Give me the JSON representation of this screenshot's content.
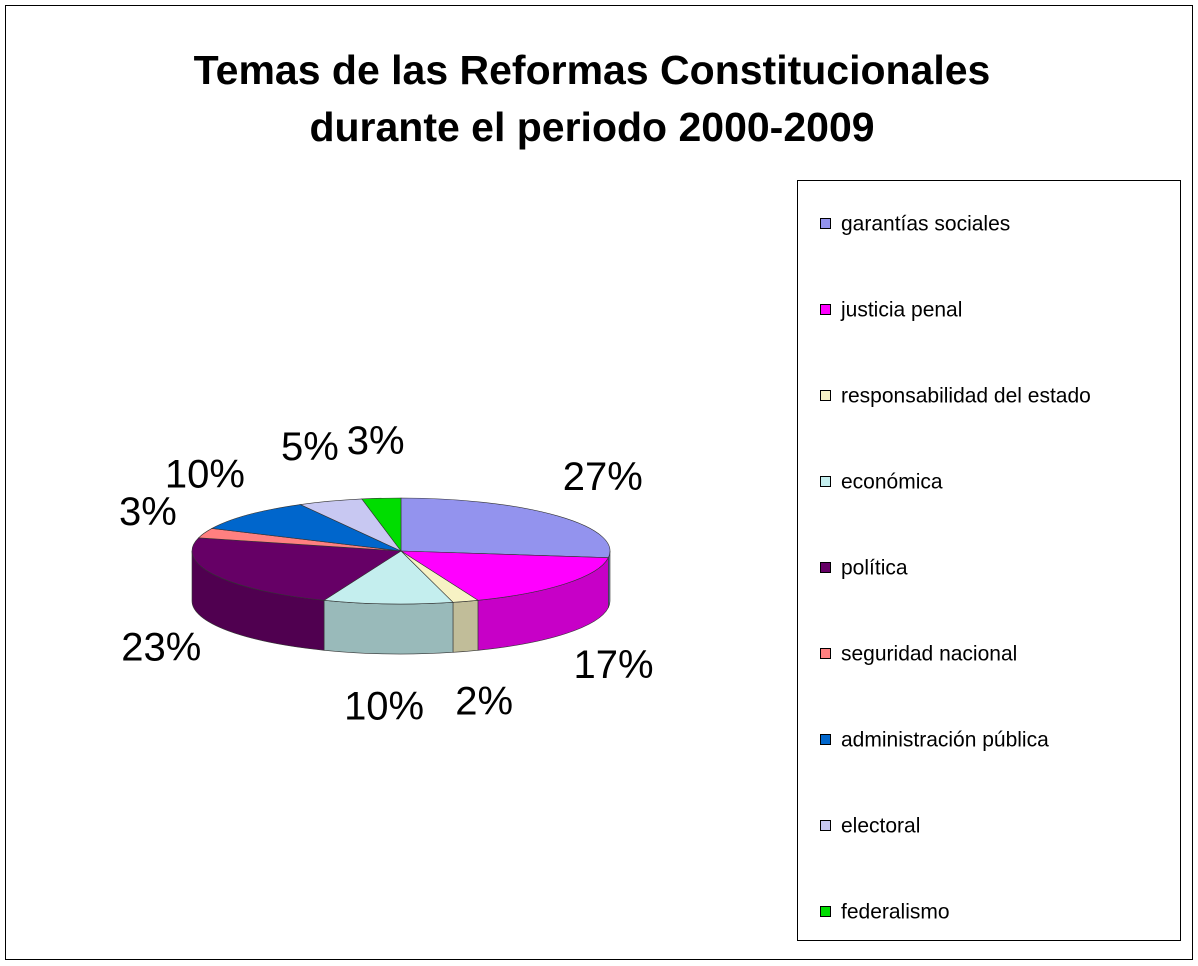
{
  "chart_data": {
    "type": "pie3d",
    "title": [
      "Temas de las Reformas Constitucionales",
      "durante el periodo 2000-2009"
    ],
    "categories": [
      "garantías sociales",
      "justicia penal",
      "responsabilidad del estado",
      "económica",
      "política",
      "seguridad nacional",
      "administración pública",
      "electoral",
      "federalismo"
    ],
    "values": [
      27,
      17,
      2,
      10,
      23,
      3,
      10,
      5,
      3
    ],
    "value_labels": [
      "27%",
      "17%",
      "2%",
      "10%",
      "23%",
      "3%",
      "10%",
      "5%",
      "3%"
    ],
    "colors": [
      "#9393ee",
      "#ff00ff",
      "#f7f2c4",
      "#c4eeee",
      "#660066",
      "#ff8080",
      "#0066cc",
      "#c8c8f2",
      "#00dd00"
    ],
    "legend": "right"
  }
}
